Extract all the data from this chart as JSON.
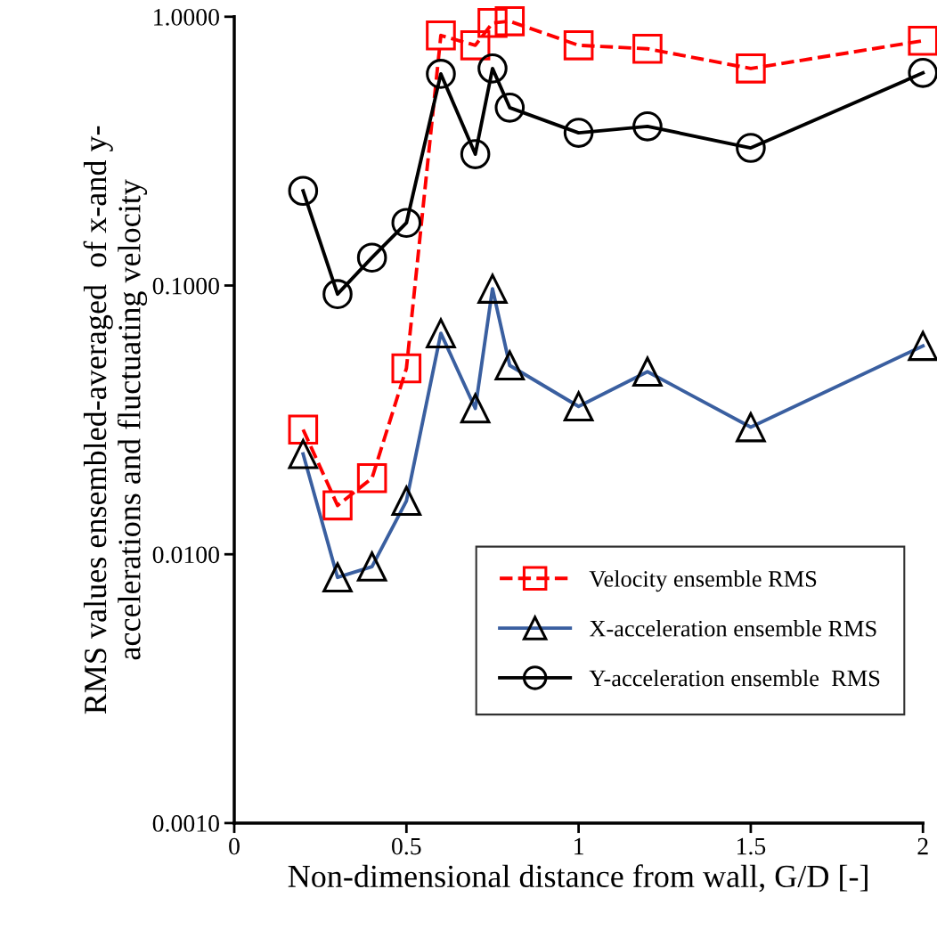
{
  "chart_data": {
    "type": "line",
    "xlabel": "Non-dimensional distance from wall, G/D [-]",
    "ylabel": "RMS values ensembled-averaged  of x-and y-\naccelerations and fluctuating velocity",
    "x": [
      0.2,
      0.3,
      0.4,
      0.5,
      0.6,
      0.7,
      0.75,
      0.8,
      1.0,
      1.2,
      1.5,
      2.0
    ],
    "series": [
      {
        "name": "Velocity ensemble RMS",
        "color": "#ff0000",
        "marker": "square",
        "line_style": "dashed",
        "values": [
          0.0291,
          0.0152,
          0.0192,
          0.0492,
          0.852,
          0.783,
          0.948,
          0.962,
          0.783,
          0.76,
          0.642,
          0.814
        ]
      },
      {
        "name": "X-acceleration ensemble RMS",
        "color": "#3a5fa0",
        "marker": "triangle",
        "line_style": "solid",
        "values": [
          0.0236,
          0.0082,
          0.009,
          0.0158,
          0.0664,
          0.0349,
          0.0973,
          0.0504,
          0.0355,
          0.0478,
          0.0297,
          0.0596
        ]
      },
      {
        "name": "Y-acceleration ensemble  RMS",
        "color": "#000000",
        "marker": "circle",
        "line_style": "solid",
        "values": [
          0.225,
          0.0929,
          0.127,
          0.171,
          0.613,
          0.308,
          0.642,
          0.459,
          0.37,
          0.391,
          0.325,
          0.618
        ]
      }
    ],
    "log": "y",
    "xlim": [
      0,
      2
    ],
    "xticks": [
      0,
      0.5,
      1,
      1.5,
      2
    ],
    "ylim": [
      0.001,
      1
    ],
    "yticks": [
      {
        "value": 0.001,
        "label": "0.0010"
      },
      {
        "value": 0.01,
        "label": "0.0100"
      },
      {
        "value": 0.1,
        "label": "0.1000"
      },
      {
        "value": 1,
        "label": "1.0000"
      }
    ],
    "grid": false,
    "legend": "bottom right"
  }
}
